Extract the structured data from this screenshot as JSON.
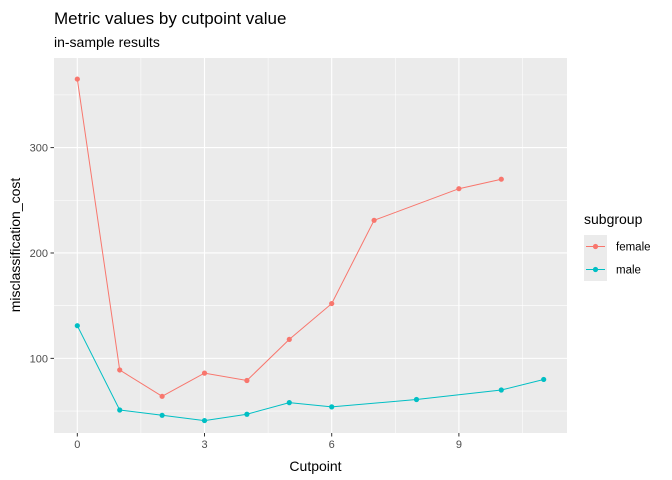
{
  "chart_data": {
    "type": "line",
    "title": "Metric values by cutpoint value",
    "subtitle": "in-sample results",
    "xlabel": "Cutpoint",
    "ylabel": "misclassification_cost",
    "xlim": [
      -0.55,
      11.55
    ],
    "ylim": [
      29.2,
      385
    ],
    "x_ticks": [
      0,
      3,
      6,
      9
    ],
    "y_ticks": [
      100,
      200,
      300
    ],
    "grid": true,
    "legend": {
      "title": "subgroup",
      "position": "right"
    },
    "series": [
      {
        "name": "female",
        "color": "#F8766D",
        "x": [
          0,
          1,
          2,
          3,
          4,
          5,
          6,
          7,
          9,
          10
        ],
        "y": [
          365,
          89,
          64,
          86,
          79,
          118,
          152,
          231,
          261,
          270
        ]
      },
      {
        "name": "male",
        "color": "#00BFC4",
        "x": [
          0,
          1,
          2,
          3,
          4,
          5,
          6,
          8,
          10,
          11
        ],
        "y": [
          131,
          51,
          46,
          41,
          47,
          58,
          54,
          61,
          70,
          80
        ]
      }
    ]
  }
}
